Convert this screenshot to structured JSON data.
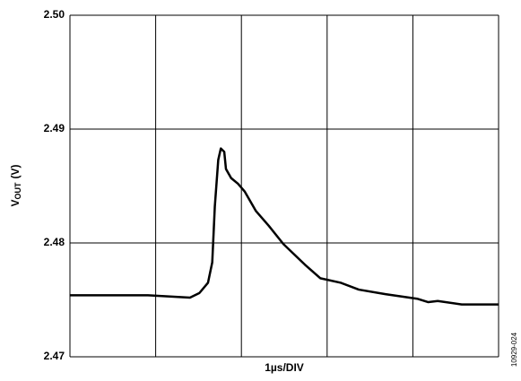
{
  "chart_data": {
    "type": "line",
    "x_label": "1µs/DIV",
    "y_label": [
      "V",
      "OUT",
      "(V)"
    ],
    "figure_id": "10929-024",
    "xlim": [
      0,
      5
    ],
    "xticks": [
      0,
      1,
      2,
      3,
      4,
      5
    ],
    "ylim": [
      2.47,
      2.5
    ],
    "yticks": [
      2.47,
      2.48,
      2.49,
      {
        "value": 2.5,
        "label": "2.50"
      }
    ],
    "grid": true,
    "series": [
      {
        "color": "#000000",
        "x": [
          0,
          0.91,
          1.4,
          1.51,
          1.61,
          1.66,
          1.69,
          1.73,
          1.76,
          1.8,
          1.82,
          1.88,
          1.96,
          2.04,
          2.17,
          2.32,
          2.49,
          2.74,
          2.92,
          3.16,
          3.37,
          3.68,
          4.05,
          4.18,
          4.29,
          4.57,
          5
        ],
        "values": [
          2.4754,
          2.4754,
          2.4752,
          2.4756,
          2.4765,
          2.4783,
          2.4832,
          2.4873,
          2.4883,
          2.488,
          2.4865,
          2.4857,
          2.4852,
          2.4845,
          2.4828,
          2.4815,
          2.4799,
          2.4781,
          2.4769,
          2.4765,
          2.4759,
          2.4755,
          2.4751,
          2.4748,
          2.4749,
          2.4746,
          2.4746
        ]
      }
    ]
  }
}
